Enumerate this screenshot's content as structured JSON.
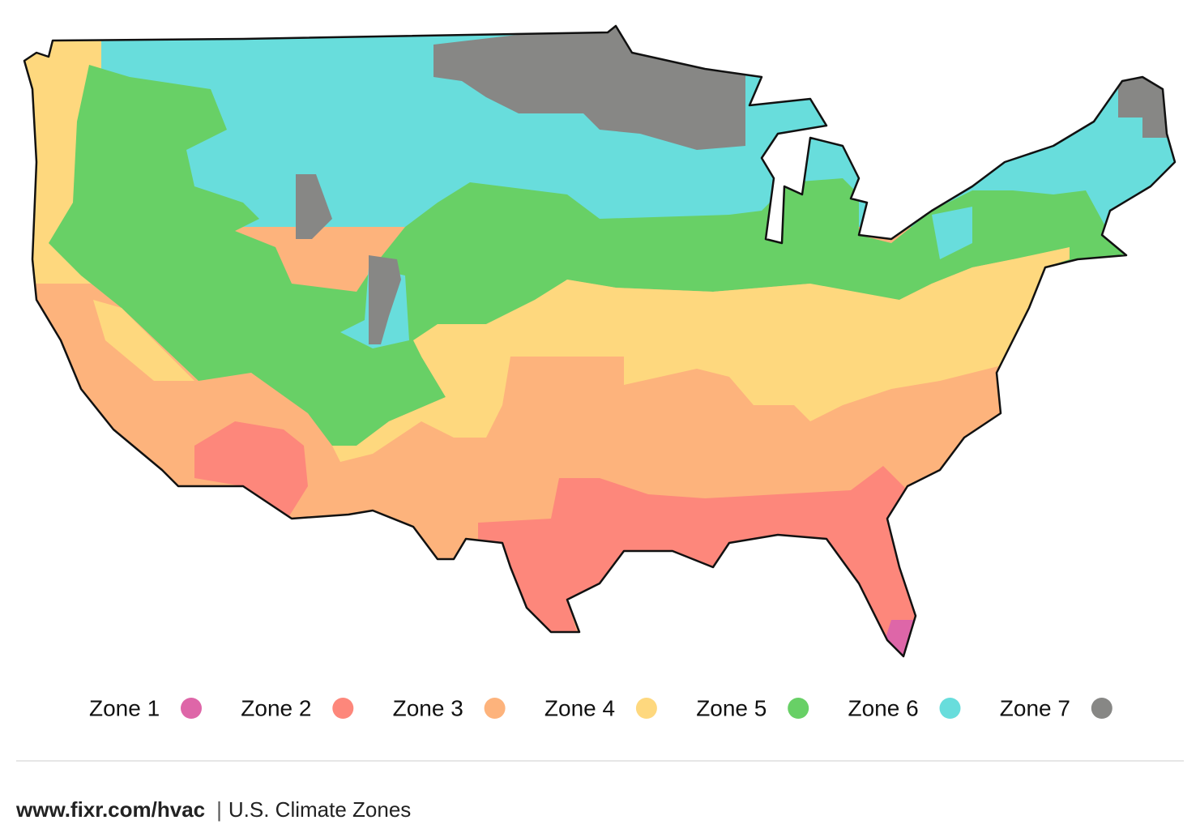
{
  "legend": [
    {
      "label": "Zone 1",
      "color": "#de66a8"
    },
    {
      "label": "Zone 2",
      "color": "#fd877b"
    },
    {
      "label": "Zone 3",
      "color": "#fdb37c"
    },
    {
      "label": "Zone 4",
      "color": "#fed87e"
    },
    {
      "label": "Zone 5",
      "color": "#68d066"
    },
    {
      "label": "Zone 6",
      "color": "#68dddc"
    },
    {
      "label": "Zone 7",
      "color": "#878785"
    }
  ],
  "footer": {
    "site": "www.fixr.com/hvac",
    "separator": "|",
    "caption": "U.S. Climate Zones"
  }
}
